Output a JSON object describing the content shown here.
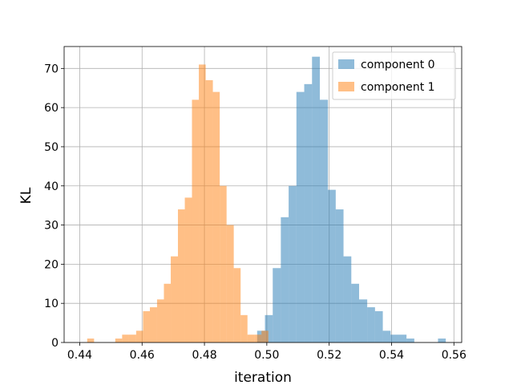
{
  "chart_data": {
    "type": "histogram",
    "xlabel": "iteration",
    "ylabel": "KL",
    "xlim": [
      0.435,
      0.5625
    ],
    "ylim": [
      0,
      75.6
    ],
    "xticks": [
      0.44,
      0.46,
      0.48,
      0.5,
      0.52,
      0.54,
      0.56
    ],
    "xtick_labels": [
      "0.44",
      "0.46",
      "0.48",
      "0.50",
      "0.52",
      "0.54",
      "0.56"
    ],
    "yticks": [
      0,
      10,
      20,
      30,
      40,
      50,
      60,
      70
    ],
    "ytick_labels": [
      "0",
      "10",
      "20",
      "30",
      "40",
      "50",
      "60",
      "70"
    ],
    "grid": true,
    "legend_position": "top-right",
    "series": [
      {
        "name": "component 0",
        "color": "#1f77b4",
        "alpha": 0.5,
        "bins": [
          {
            "x0": 0.4969,
            "x1": 0.4994,
            "count": 3
          },
          {
            "x0": 0.4994,
            "x1": 0.5019,
            "count": 7
          },
          {
            "x0": 0.5019,
            "x1": 0.5045,
            "count": 19
          },
          {
            "x0": 0.5045,
            "x1": 0.507,
            "count": 32
          },
          {
            "x0": 0.507,
            "x1": 0.5095,
            "count": 40
          },
          {
            "x0": 0.5095,
            "x1": 0.512,
            "count": 64
          },
          {
            "x0": 0.512,
            "x1": 0.5145,
            "count": 66
          },
          {
            "x0": 0.5145,
            "x1": 0.517,
            "count": 73
          },
          {
            "x0": 0.517,
            "x1": 0.5196,
            "count": 62
          },
          {
            "x0": 0.5196,
            "x1": 0.5221,
            "count": 39
          },
          {
            "x0": 0.5221,
            "x1": 0.5246,
            "count": 34
          },
          {
            "x0": 0.5246,
            "x1": 0.5271,
            "count": 22
          },
          {
            "x0": 0.5271,
            "x1": 0.5296,
            "count": 15
          },
          {
            "x0": 0.5296,
            "x1": 0.5322,
            "count": 11
          },
          {
            "x0": 0.5322,
            "x1": 0.5347,
            "count": 9
          },
          {
            "x0": 0.5347,
            "x1": 0.5372,
            "count": 8
          },
          {
            "x0": 0.5372,
            "x1": 0.5397,
            "count": 3
          },
          {
            "x0": 0.5397,
            "x1": 0.5422,
            "count": 2
          },
          {
            "x0": 0.5422,
            "x1": 0.5448,
            "count": 2
          },
          {
            "x0": 0.5448,
            "x1": 0.5473,
            "count": 1
          },
          {
            "x0": 0.5549,
            "x1": 0.5574,
            "count": 1
          }
        ]
      },
      {
        "name": "component 1",
        "color": "#ff7f0e",
        "alpha": 0.5,
        "bins": [
          {
            "x0": 0.4424,
            "x1": 0.4446,
            "count": 1
          },
          {
            "x0": 0.4514,
            "x1": 0.4536,
            "count": 1
          },
          {
            "x0": 0.4536,
            "x1": 0.4558,
            "count": 2
          },
          {
            "x0": 0.4558,
            "x1": 0.4581,
            "count": 2
          },
          {
            "x0": 0.4581,
            "x1": 0.4603,
            "count": 3
          },
          {
            "x0": 0.4603,
            "x1": 0.4625,
            "count": 8
          },
          {
            "x0": 0.4625,
            "x1": 0.4648,
            "count": 9
          },
          {
            "x0": 0.4648,
            "x1": 0.467,
            "count": 11
          },
          {
            "x0": 0.467,
            "x1": 0.4692,
            "count": 15
          },
          {
            "x0": 0.4692,
            "x1": 0.4715,
            "count": 22
          },
          {
            "x0": 0.4715,
            "x1": 0.4737,
            "count": 34
          },
          {
            "x0": 0.4737,
            "x1": 0.476,
            "count": 37
          },
          {
            "x0": 0.476,
            "x1": 0.4782,
            "count": 62
          },
          {
            "x0": 0.4782,
            "x1": 0.4804,
            "count": 71
          },
          {
            "x0": 0.4804,
            "x1": 0.4827,
            "count": 67
          },
          {
            "x0": 0.4827,
            "x1": 0.4849,
            "count": 64
          },
          {
            "x0": 0.4849,
            "x1": 0.4871,
            "count": 40
          },
          {
            "x0": 0.4871,
            "x1": 0.4894,
            "count": 30
          },
          {
            "x0": 0.4894,
            "x1": 0.4916,
            "count": 19
          },
          {
            "x0": 0.4916,
            "x1": 0.4938,
            "count": 7
          },
          {
            "x0": 0.4938,
            "x1": 0.4961,
            "count": 2
          },
          {
            "x0": 0.4961,
            "x1": 0.4983,
            "count": 2
          },
          {
            "x0": 0.4983,
            "x1": 0.5005,
            "count": 3
          }
        ]
      }
    ]
  }
}
